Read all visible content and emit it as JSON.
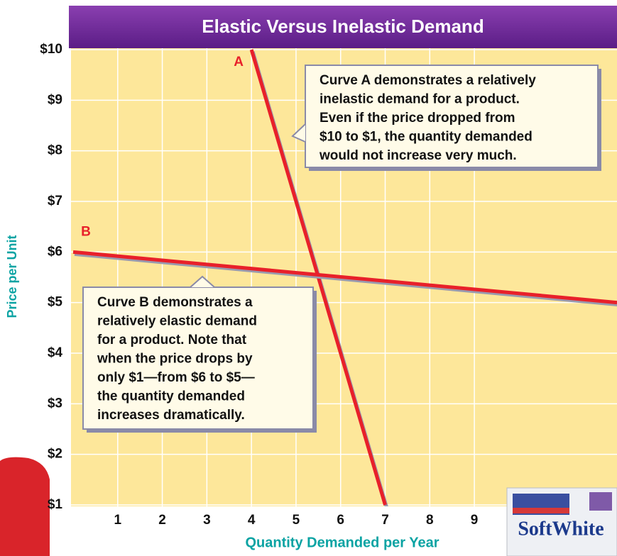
{
  "chart_data": {
    "type": "line",
    "title": "Elastic Versus Inelastic Demand",
    "x_label": "Quantity Demanded per Year",
    "y_label": "Price per Unit",
    "series": [
      {
        "name": "A",
        "color": "#e8202a",
        "x": [
          4,
          7
        ],
        "values": [
          10,
          1
        ]
      },
      {
        "name": "B",
        "color": "#e8202a",
        "x": [
          0,
          12.2
        ],
        "values": [
          6,
          5
        ]
      }
    ],
    "xlim": [
      0,
      12.2
    ],
    "ylim": [
      1,
      10
    ],
    "xticks": [
      1,
      2,
      3,
      4,
      5,
      6,
      7,
      8,
      9
    ],
    "yticks": [
      {
        "value": 1,
        "label": "$1"
      },
      {
        "value": 2,
        "label": "$2"
      },
      {
        "value": 3,
        "label": "$3"
      },
      {
        "value": 4,
        "label": "$4"
      },
      {
        "value": 5,
        "label": "$5"
      },
      {
        "value": 6,
        "label": "$6"
      },
      {
        "value": 7,
        "label": "$7"
      },
      {
        "value": 8,
        "label": "$8"
      },
      {
        "value": 9,
        "label": "$9"
      },
      {
        "value": 10,
        "label": "$10"
      }
    ],
    "grid": true,
    "annotations": [
      {
        "lines": [
          "Curve A demonstrates a relatively",
          "inelastic demand for a product.",
          "Even if the price dropped from",
          "$10 to $1, the quantity demanded",
          "would not increase very much."
        ]
      },
      {
        "lines": [
          "Curve B demonstrates a",
          "relatively elastic demand",
          "for a product. Note that",
          "when the price drops by",
          "only $1—from $6 to $5—",
          "the quantity demanded",
          "increases dramatically."
        ]
      }
    ]
  },
  "product_box_label": "SoftWhite"
}
